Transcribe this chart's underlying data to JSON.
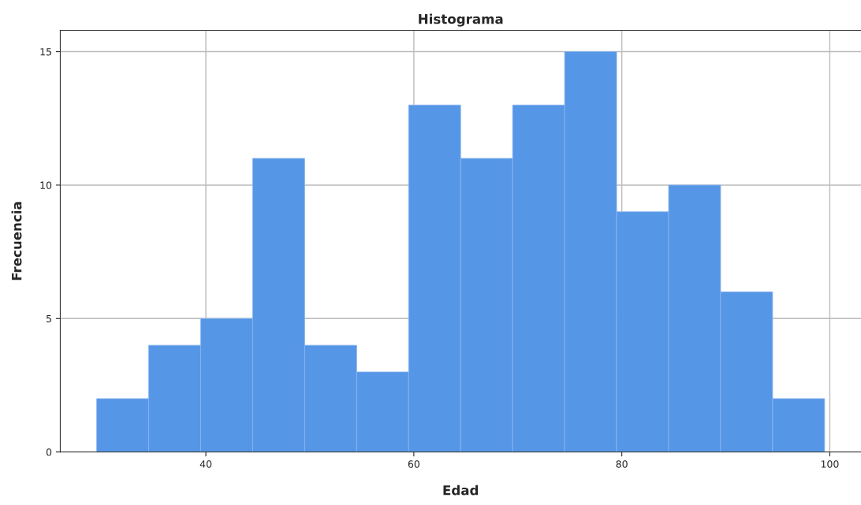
{
  "chart_data": {
    "type": "histogram",
    "title": "Histograma",
    "xlabel": "Edad",
    "ylabel": "Frecuencia",
    "bins": [
      29.5,
      34.5,
      39.5,
      44.5,
      49.5,
      54.5,
      59.5,
      64.5,
      69.5,
      74.5,
      79.5,
      84.5,
      89.5,
      94.5,
      99.5
    ],
    "values": [
      2,
      4,
      5,
      11,
      4,
      3,
      13,
      11,
      13,
      15,
      9,
      10,
      6,
      2
    ],
    "color": "#5596e6",
    "xlim": [
      26,
      103
    ],
    "xticks": [
      40,
      60,
      80,
      100
    ],
    "ylim": [
      0,
      15.8
    ],
    "yticks": [
      0,
      5,
      10,
      15
    ],
    "grid": true
  }
}
